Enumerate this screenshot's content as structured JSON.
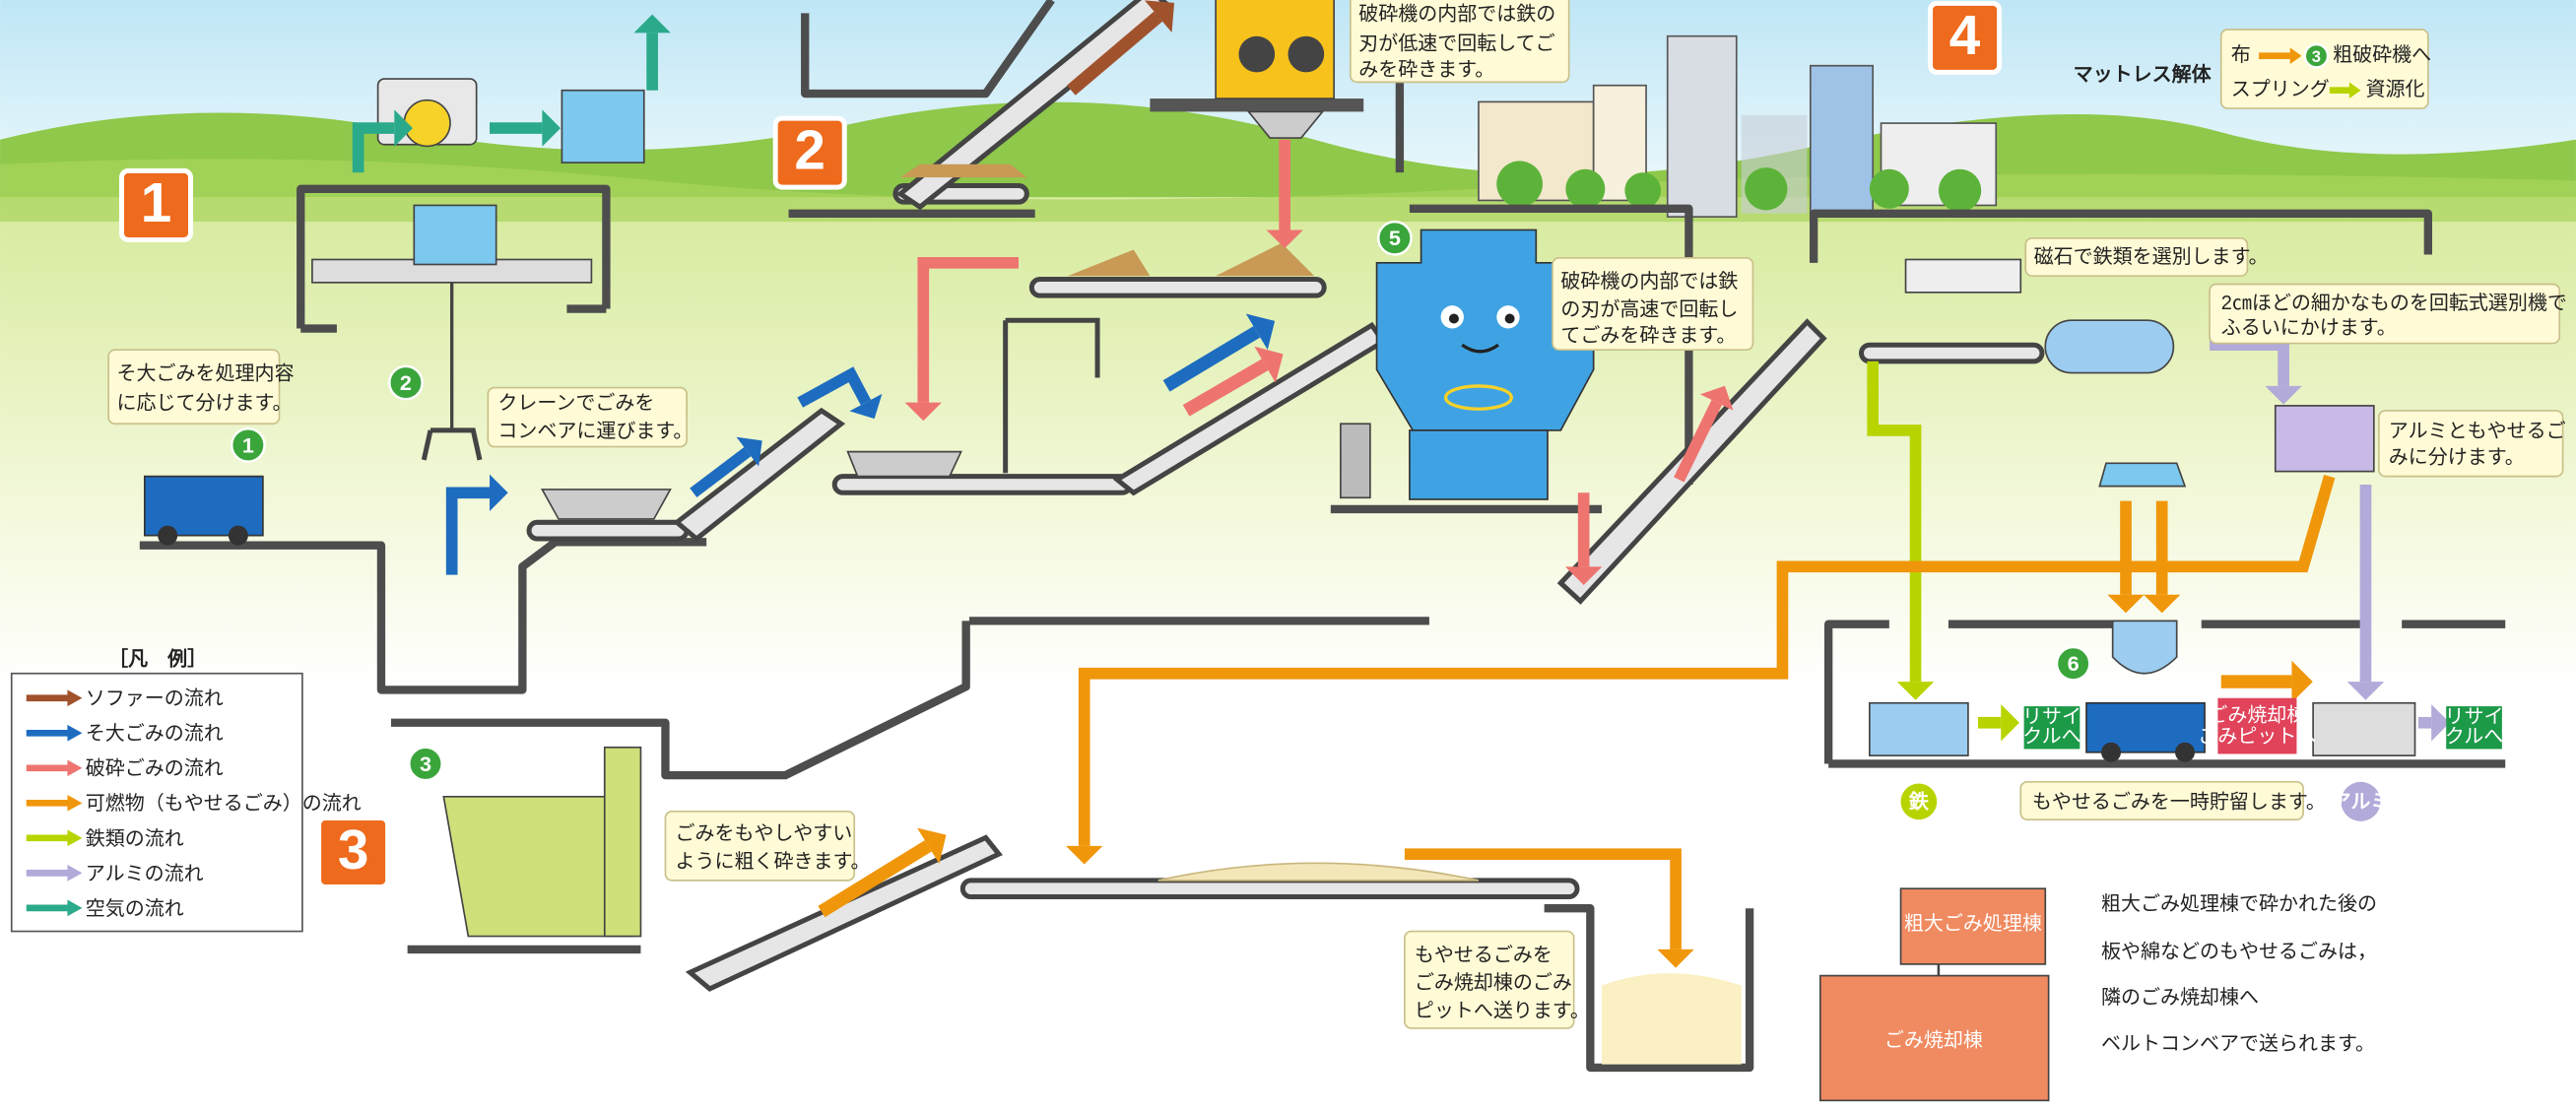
{
  "step_badges": [
    "1",
    "2",
    "3",
    "4"
  ],
  "stage_markers": [
    "1",
    "2",
    "3",
    "5",
    "6"
  ],
  "callouts": [
    {
      "lines": [
        "そ大ごみを処理内容",
        "に応じて分けます。"
      ]
    },
    {
      "lines": [
        "クレーンでごみを",
        "コンベアに運びます。"
      ]
    },
    {
      "lines": [
        "破砕機の内部では鉄の",
        "刃が低速で回転してご",
        "みを砕きます。"
      ]
    },
    {
      "lines": [
        "破砕機の内部では鉄",
        "の刃が高速で回転し",
        "てごみを砕きます。"
      ]
    },
    {
      "lines": [
        "磁石で鉄類を選別します。"
      ]
    },
    {
      "lines": [
        "2㎝ほどの細かなものを回転式選別機で",
        "ふるいにかけます。"
      ]
    },
    {
      "lines": [
        "アルミともやせるご",
        "みに分けます。"
      ]
    },
    {
      "lines": [
        "ごみをもやしやすい",
        "ように粗く砕きます。"
      ]
    },
    {
      "lines": [
        "もやせるごみを",
        "ごみ焼却棟のごみ",
        "ピットへ送ります。"
      ]
    },
    {
      "lines": [
        "もやせるごみを一時貯留します。"
      ]
    }
  ],
  "mattress": {
    "title": "マットレス解体",
    "rows": [
      {
        "from": "布",
        "marker": "3",
        "to": "粗破砕機へ"
      },
      {
        "from": "スプリング",
        "to": "資源化"
      }
    ]
  },
  "outputs": {
    "recycle": [
      "リサイ",
      "クルへ"
    ],
    "pit": [
      "ごみ焼却棟",
      "ごみピットへ"
    ],
    "iron": "鉄",
    "aluminum": "アルミ"
  },
  "legend": {
    "title": "［凡　例］",
    "items": [
      {
        "label": "ソファーの流れ",
        "color": "#a0522d"
      },
      {
        "label": "そ大ごみの流れ",
        "color": "#1d6cc0"
      },
      {
        "label": "破砕ごみの流れ",
        "color": "#ee7470"
      },
      {
        "label": "可燃物（もやせるごみ）の流れ",
        "color": "#f0960a"
      },
      {
        "label": "鉄類の流れ",
        "color": "#b8d400"
      },
      {
        "label": "アルミの流れ",
        "color": "#b2aad8"
      },
      {
        "label": "空気の流れ",
        "color": "#2aaa8a"
      }
    ]
  },
  "buildings": {
    "processing": "粗大ごみ処理棟",
    "incinerator": "ごみ焼却棟"
  },
  "description": [
    "粗大ごみ処理棟で砕かれた後の",
    "板や綿などのもやせるごみは，",
    "隣のごみ焼却棟へ",
    "ベルトコンベアで送られます。"
  ]
}
